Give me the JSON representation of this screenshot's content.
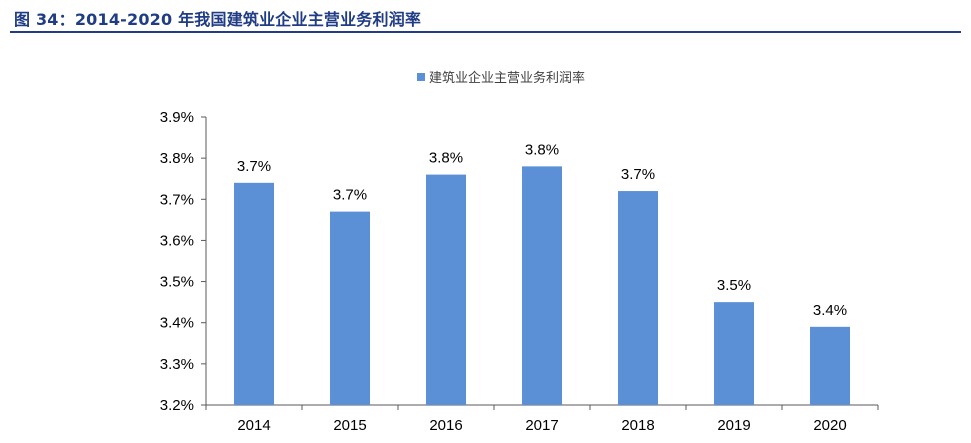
{
  "figure": {
    "title": "图 34：2014-2020 年我国建筑业企业主营业务利润率"
  },
  "colors": {
    "title": "#1f3c84",
    "bar": "#5b8fd6",
    "axis": "#595959",
    "text": "#000000"
  },
  "chart_data": {
    "type": "bar",
    "categories": [
      "2014",
      "2015",
      "2016",
      "2017",
      "2018",
      "2019",
      "2020"
    ],
    "series": [
      {
        "name": "建筑业企业主营业务利润率",
        "values": [
          3.74,
          3.67,
          3.76,
          3.78,
          3.72,
          3.45,
          3.39
        ],
        "data_labels": [
          "3.7%",
          "3.7%",
          "3.8%",
          "3.8%",
          "3.7%",
          "3.5%",
          "3.4%"
        ]
      }
    ],
    "ylim": [
      3.2,
      3.9
    ],
    "yticks": [
      "3.2%",
      "3.3%",
      "3.4%",
      "3.5%",
      "3.6%",
      "3.7%",
      "3.8%",
      "3.9%"
    ],
    "legend_position": "top-center",
    "grid": false
  }
}
